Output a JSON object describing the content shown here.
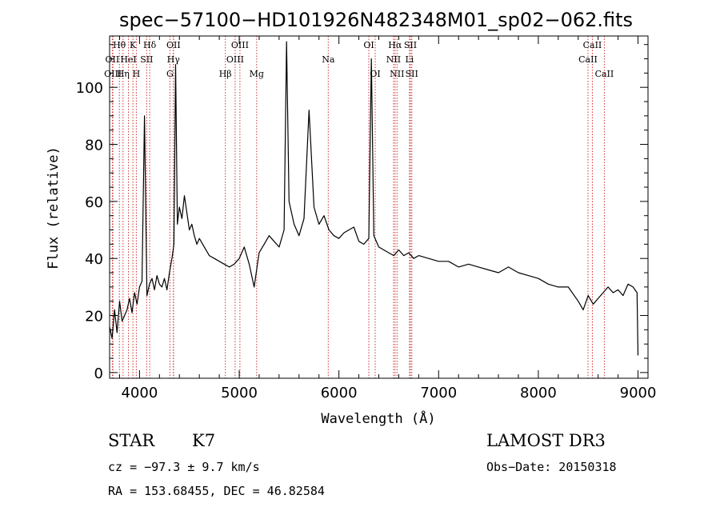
{
  "chart_data": {
    "type": "line",
    "title": "spec−57100−HD101926N482348M01_sp02−062.fits",
    "xlabel": "Wavelength (Å)",
    "ylabel": "Flux (relative)",
    "xlim": [
      3700,
      9100
    ],
    "ylim": [
      -2,
      118
    ],
    "xticks": [
      4000,
      5000,
      6000,
      7000,
      8000,
      9000
    ],
    "yticks": [
      0,
      20,
      40,
      60,
      80,
      100
    ],
    "grid": false,
    "series": [
      {
        "x": [
          3700,
          3725,
          3750,
          3775,
          3800,
          3825,
          3850,
          3875,
          3900,
          3925,
          3950,
          3975,
          4000,
          4025,
          4050,
          4075,
          4100,
          4125,
          4150,
          4175,
          4200,
          4225,
          4250,
          4275,
          4300,
          4325,
          4345,
          4362,
          4380,
          4400,
          4425,
          4450,
          4475,
          4500,
          4525,
          4550,
          4575,
          4600,
          4650,
          4700,
          4750,
          4800,
          4850,
          4900,
          4950,
          5000,
          5050,
          5100,
          5150,
          5200,
          5250,
          5300,
          5350,
          5400,
          5450,
          5475,
          5500,
          5550,
          5600,
          5650,
          5700,
          5750,
          5800,
          5850,
          5900,
          5950,
          6000,
          6050,
          6100,
          6150,
          6200,
          6250,
          6300,
          6325,
          6350,
          6400,
          6450,
          6500,
          6550,
          6600,
          6650,
          6700,
          6750,
          6800,
          6900,
          7000,
          7100,
          7200,
          7300,
          7400,
          7500,
          7600,
          7700,
          7800,
          7900,
          8000,
          8100,
          8200,
          8300,
          8400,
          8450,
          8500,
          8550,
          8600,
          8650,
          8700,
          8750,
          8800,
          8850,
          8900,
          8950,
          8990,
          9000
        ],
        "y": [
          16,
          12,
          22,
          14,
          25,
          18,
          20,
          22,
          26,
          21,
          28,
          24,
          30,
          32,
          90,
          27,
          31,
          33,
          29,
          34,
          31,
          30,
          33,
          29,
          35,
          40,
          45,
          108,
          52,
          58,
          54,
          62,
          56,
          50,
          52,
          48,
          45,
          47,
          44,
          41,
          40,
          39,
          38,
          37,
          38,
          40,
          44,
          38,
          30,
          42,
          45,
          48,
          46,
          44,
          50,
          116,
          60,
          52,
          48,
          54,
          92,
          58,
          52,
          55,
          50,
          48,
          47,
          49,
          50,
          51,
          46,
          45,
          47,
          110,
          48,
          44,
          43,
          42,
          41,
          43,
          41,
          42,
          40,
          41,
          40,
          39,
          39,
          37,
          38,
          37,
          36,
          35,
          37,
          35,
          34,
          33,
          31,
          30,
          30,
          25,
          22,
          27,
          24,
          26,
          28,
          30,
          28,
          29,
          27,
          31,
          30,
          28,
          6
        ]
      }
    ],
    "spectral_lines": [
      {
        "label": "Hθ",
        "wavelength": 3798,
        "row": 1
      },
      {
        "label": "K",
        "wavelength": 3934,
        "row": 1
      },
      {
        "label": "Hδ",
        "wavelength": 4102,
        "row": 1
      },
      {
        "label": "OII",
        "wavelength": 4341,
        "row": 1
      },
      {
        "label": "OIII",
        "wavelength": 5007,
        "row": 1
      },
      {
        "label": "OI",
        "wavelength": 6300,
        "row": 1
      },
      {
        "label": "Hα",
        "wavelength": 6563,
        "row": 1
      },
      {
        "label": "SII",
        "wavelength": 6717,
        "row": 1
      },
      {
        "label": "CaII",
        "wavelength": 8542,
        "row": 1
      },
      {
        "label": "OII",
        "wavelength": 3727,
        "row": 2
      },
      {
        "label": "HeI",
        "wavelength": 3889,
        "row": 2
      },
      {
        "label": "SII",
        "wavelength": 4072,
        "row": 2
      },
      {
        "label": "Hγ",
        "wavelength": 4340,
        "row": 2
      },
      {
        "label": "OIII",
        "wavelength": 4959,
        "row": 2
      },
      {
        "label": "Na",
        "wavelength": 5893,
        "row": 2
      },
      {
        "label": "NII",
        "wavelength": 6548,
        "row": 2
      },
      {
        "label": "Li",
        "wavelength": 6708,
        "row": 2
      },
      {
        "label": "CaII",
        "wavelength": 8498,
        "row": 2
      },
      {
        "label": "OIII",
        "wavelength": 3733,
        "row": 3
      },
      {
        "label": "Hη",
        "wavelength": 3835,
        "row": 3
      },
      {
        "label": "H",
        "wavelength": 3968,
        "row": 3
      },
      {
        "label": "G",
        "wavelength": 4305,
        "row": 3
      },
      {
        "label": "Hβ",
        "wavelength": 4861,
        "row": 3
      },
      {
        "label": "Mg",
        "wavelength": 5175,
        "row": 3
      },
      {
        "label": "OI",
        "wavelength": 6364,
        "row": 3
      },
      {
        "label": "NII",
        "wavelength": 6583,
        "row": 3
      },
      {
        "label": "SII",
        "wavelength": 6731,
        "row": 3
      },
      {
        "label": "CaII",
        "wavelength": 8662,
        "row": 3
      }
    ]
  },
  "info": {
    "object_class": "STAR",
    "subclass": "K7",
    "survey": "LAMOST DR3",
    "cz": "cz = −97.3 ± 9.7 km/s",
    "obs_date": "Obs−Date: 20150318",
    "coords": "RA = 153.68455, DEC =  46.82584"
  },
  "colors": {
    "axes": "#000000",
    "spectrum": "#000000",
    "line_markers": "#cc3333"
  }
}
